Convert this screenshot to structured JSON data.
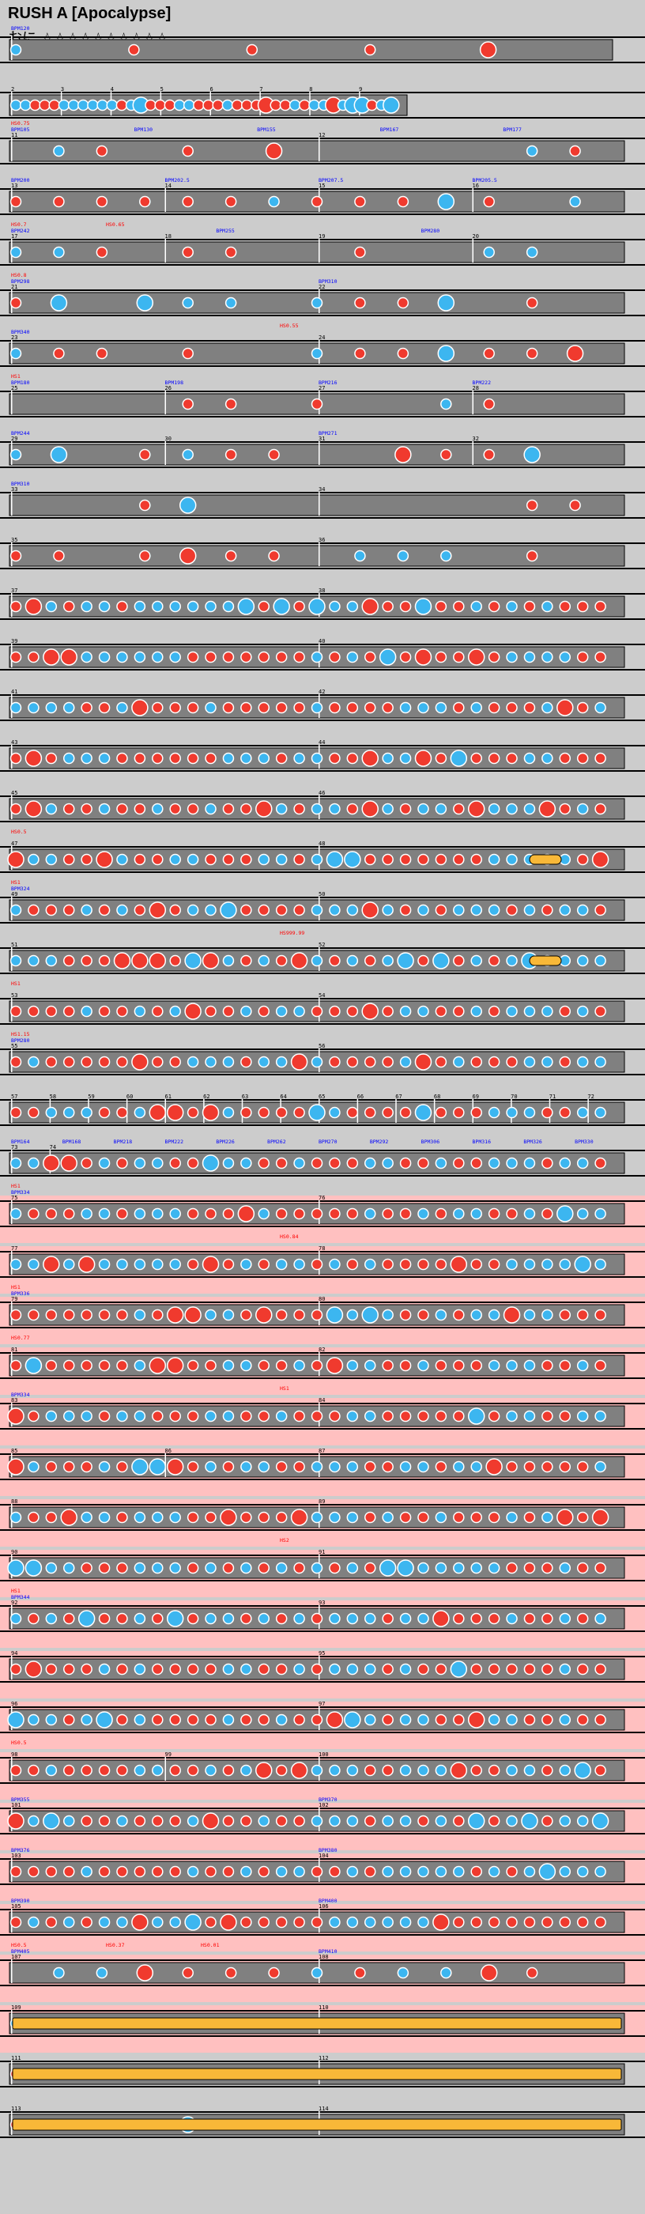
{
  "header": {
    "song_title": "RUSH A [Apocalypse]",
    "course_line": "おに ☆☆☆☆☆☆☆☆☆☆"
  },
  "colors": {
    "background": "#cccccc",
    "lane": "#808080",
    "lane_border": "#000000",
    "gogo_band": "#ffc0c0",
    "don": "#f03a2e",
    "ka": "#3cb6f0",
    "drumroll": "#f8b838",
    "bpm_label": "#0000ff",
    "hs_label": "#ff0000",
    "measure_line": "#ffffff"
  },
  "rows": [
    {
      "measures": [
        "1"
      ],
      "bpm": [
        "BPM120"
      ],
      "hs": []
    },
    {
      "measures": [
        "2",
        "3",
        "4",
        "5",
        "6",
        "7",
        "8",
        "9"
      ],
      "bpm": [],
      "hs": []
    },
    {
      "measures": [
        "11",
        "12"
      ],
      "bpm": [
        "BPM105",
        "BPM130",
        "BPM155",
        "BPM167",
        "BPM177"
      ],
      "hs": [
        "HS0.75"
      ]
    },
    {
      "measures": [
        "13",
        "14",
        "15",
        "16"
      ],
      "bpm": [
        "BPM200",
        "BPM202.5",
        "BPM207.5",
        "BPM205.5"
      ],
      "hs": []
    },
    {
      "measures": [
        "17",
        "18",
        "19",
        "20"
      ],
      "bpm": [
        "BPM242",
        "BPM255",
        "BPM280"
      ],
      "hs": [
        "HS0.7",
        "HS0.65"
      ]
    },
    {
      "measures": [
        "21",
        "22"
      ],
      "bpm": [
        "BPM298",
        "BPM310"
      ],
      "hs": [
        "HS0.8"
      ]
    },
    {
      "measures": [
        "23",
        "24"
      ],
      "bpm": [
        "BPM340"
      ],
      "hs": [
        "HS0.55"
      ]
    },
    {
      "measures": [
        "25",
        "26",
        "27",
        "28"
      ],
      "bpm": [
        "BPM180",
        "BPM198",
        "BPM216",
        "BPM222"
      ],
      "hs": [
        "HS1"
      ]
    },
    {
      "measures": [
        "29",
        "30",
        "31",
        "32"
      ],
      "bpm": [
        "BPM244",
        "BPM271"
      ],
      "hs": []
    },
    {
      "measures": [
        "33",
        "34"
      ],
      "bpm": [
        "BPM310"
      ],
      "hs": []
    },
    {
      "measures": [
        "35",
        "36"
      ],
      "bpm": [],
      "hs": []
    },
    {
      "measures": [
        "37",
        "38"
      ],
      "bpm": [],
      "hs": []
    },
    {
      "measures": [
        "39",
        "40"
      ],
      "bpm": [],
      "hs": []
    },
    {
      "measures": [
        "41",
        "42"
      ],
      "bpm": [],
      "hs": []
    },
    {
      "measures": [
        "43",
        "44"
      ],
      "bpm": [],
      "hs": []
    },
    {
      "measures": [
        "45",
        "46"
      ],
      "bpm": [],
      "hs": []
    },
    {
      "measures": [
        "47",
        "48"
      ],
      "bpm": [],
      "hs": [
        "HS0.5"
      ]
    },
    {
      "measures": [
        "49",
        "50"
      ],
      "bpm": [
        "BPM324"
      ],
      "hs": [
        "HS1"
      ]
    },
    {
      "measures": [
        "51",
        "52"
      ],
      "bpm": [],
      "hs": [
        "HS999.99"
      ]
    },
    {
      "measures": [
        "53",
        "54"
      ],
      "bpm": [],
      "hs": [
        "HS1"
      ]
    },
    {
      "measures": [
        "55",
        "56"
      ],
      "bpm": [
        "BPM280"
      ],
      "hs": [
        "HS1.15"
      ]
    },
    {
      "measures": [
        "57",
        "58",
        "59",
        "60",
        "61",
        "62",
        "63",
        "64",
        "65",
        "66",
        "67",
        "68",
        "69",
        "70",
        "71",
        "72"
      ],
      "bpm": [],
      "hs": []
    },
    {
      "measures": [
        "73",
        "74"
      ],
      "bpm": [
        "BPM164",
        "BPM168",
        "BPM218",
        "BPM222",
        "BPM226",
        "BPM262",
        "BPM270",
        "BPM292",
        "BPM306",
        "BPM316",
        "BPM326",
        "BPM330"
      ],
      "hs": []
    },
    {
      "measures": [
        "75",
        "76"
      ],
      "bpm": [
        "BPM334"
      ],
      "hs": [
        "HS1"
      ]
    },
    {
      "measures": [
        "77",
        "78"
      ],
      "bpm": [],
      "hs": [
        "HS0.84"
      ]
    },
    {
      "measures": [
        "79",
        "80"
      ],
      "bpm": [
        "BPM336"
      ],
      "hs": [
        "HS1"
      ]
    },
    {
      "measures": [
        "81",
        "82"
      ],
      "bpm": [],
      "hs": [
        "HS0.77"
      ]
    },
    {
      "measures": [
        "83",
        "84"
      ],
      "bpm": [
        "BPM334"
      ],
      "hs": [
        "HS1"
      ]
    },
    {
      "measures": [
        "85",
        "86",
        "87"
      ],
      "bpm": [],
      "hs": []
    },
    {
      "measures": [
        "88",
        "89"
      ],
      "bpm": [],
      "hs": []
    },
    {
      "measures": [
        "90",
        "91"
      ],
      "bpm": [],
      "hs": [
        "HS2"
      ]
    },
    {
      "measures": [
        "92",
        "93"
      ],
      "bpm": [
        "BPM344"
      ],
      "hs": [
        "HS1"
      ]
    },
    {
      "measures": [
        "94",
        "95"
      ],
      "bpm": [],
      "hs": []
    },
    {
      "measures": [
        "96",
        "97"
      ],
      "bpm": [],
      "hs": []
    },
    {
      "measures": [
        "98",
        "99",
        "100"
      ],
      "bpm": [],
      "hs": [
        "HS0.5"
      ]
    },
    {
      "measures": [
        "101",
        "102"
      ],
      "bpm": [
        "BPM355",
        "BPM370"
      ],
      "hs": []
    },
    {
      "measures": [
        "103",
        "104"
      ],
      "bpm": [
        "BPM376",
        "BPM380"
      ],
      "hs": []
    },
    {
      "measures": [
        "105",
        "106"
      ],
      "bpm": [
        "BPM390",
        "BPM400"
      ],
      "hs": []
    },
    {
      "measures": [
        "107",
        "108"
      ],
      "bpm": [
        "BPM405",
        "BPM410"
      ],
      "hs": [
        "HS0.5",
        "HS0.37",
        "HS0.01"
      ]
    },
    {
      "measures": [
        "109",
        "110"
      ],
      "bpm": [],
      "hs": []
    },
    {
      "measures": [
        "111",
        "112"
      ],
      "bpm": [],
      "hs": []
    },
    {
      "measures": [
        "113",
        "114"
      ],
      "bpm": [],
      "hs": []
    }
  ]
}
